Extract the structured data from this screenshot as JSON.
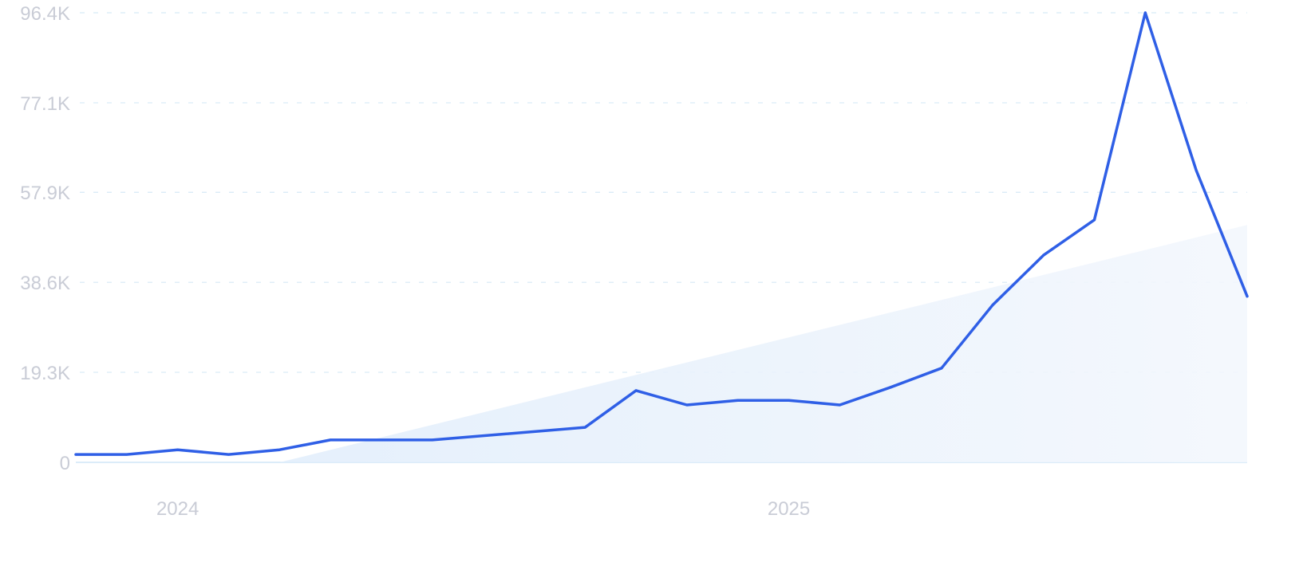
{
  "chart_data": {
    "type": "line",
    "title": "",
    "xlabel": "",
    "ylabel": "",
    "ylim": [
      0,
      96.4
    ],
    "y_unit": "K",
    "y_ticks": [
      {
        "value": 0,
        "label": "0"
      },
      {
        "value": 19.3,
        "label": "19.3K"
      },
      {
        "value": 38.6,
        "label": "38.6K"
      },
      {
        "value": 57.9,
        "label": "57.9K"
      },
      {
        "value": 77.1,
        "label": "77.1K"
      },
      {
        "value": 96.4,
        "label": "96.4K"
      }
    ],
    "x_ticks": [
      {
        "value": "2024-01",
        "label": "2024"
      },
      {
        "value": "2025-01",
        "label": "2025"
      }
    ],
    "xlim": [
      "2023-11",
      "2025-10"
    ],
    "grid": "horizontal dashed",
    "series": [
      {
        "color": "#2f5fe6",
        "points": [
          [
            "2023-11",
            1.7
          ],
          [
            "2023-12",
            1.7
          ],
          [
            "2024-01",
            2.7
          ],
          [
            "2024-02",
            1.7
          ],
          [
            "2024-03",
            2.7
          ],
          [
            "2024-04",
            4.8
          ],
          [
            "2024-06",
            4.8
          ],
          [
            "2024-09",
            7.5
          ],
          [
            "2024-10",
            15.4
          ],
          [
            "2024-11",
            12.3
          ],
          [
            "2024-12",
            13.3
          ],
          [
            "2025-01",
            13.3
          ],
          [
            "2025-02",
            12.3
          ],
          [
            "2025-03",
            16.1
          ],
          [
            "2025-04",
            20.2
          ],
          [
            "2025-05",
            33.7
          ],
          [
            "2025-06",
            44.4
          ],
          [
            "2025-07",
            52.0
          ],
          [
            "2025-08",
            96.4
          ],
          [
            "2025-09",
            62.6
          ],
          [
            "2025-10",
            35.6
          ]
        ]
      }
    ],
    "trend": {
      "color": "#e3eefb",
      "start": [
        "2024-03",
        0
      ],
      "end": [
        "2025-10",
        50.9
      ]
    },
    "colors": {
      "grid": "#d6e9f6",
      "axis_text": "#c9ccd6",
      "baseline": "#cfe6f7"
    }
  }
}
